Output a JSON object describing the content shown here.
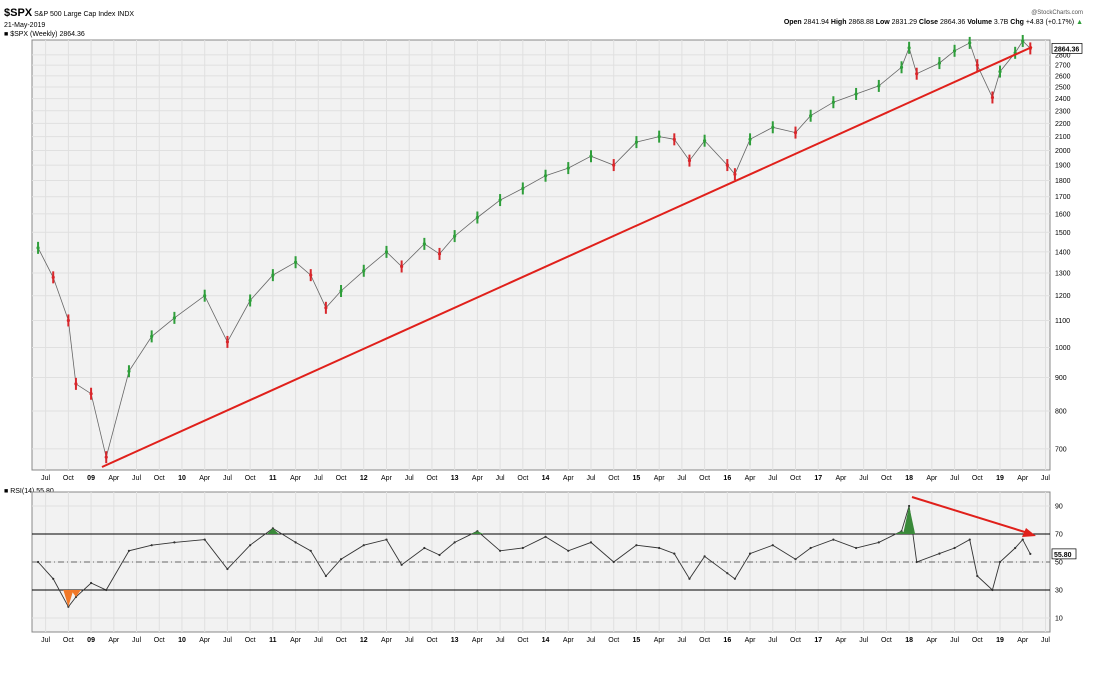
{
  "header": {
    "symbol": "$SPX",
    "name": "S&P 500 Large Cap Index",
    "exchange": "INDX",
    "date": "21-May-2019",
    "series_label": "$SPX (Weekly) 2864.36",
    "brand": "@StockCharts.com",
    "open_label": "Open",
    "open": "2841.94",
    "high_label": "High",
    "high": "2868.88",
    "low_label": "Low",
    "low": "2831.29",
    "close_label": "Close",
    "close": "2864.36",
    "volume_label": "Volume",
    "volume": "3.7B",
    "chg_label": "Chg",
    "chg": "+4.83 (+0.17%)"
  },
  "colors": {
    "up": "#2e9e3a",
    "down": "#d8262b",
    "trend": "#e0201b",
    "rsi_line": "#333333",
    "rsi_overbought": "#3a8a3a",
    "rsi_oversold": "#f07828",
    "panel_bg": "#f2f2f2",
    "grid": "#e0e0e0"
  },
  "chart_data": [
    {
      "type": "line",
      "name": "price",
      "title": "$SPX (Weekly) 2864.36",
      "scale": "log",
      "ylim": [
        650,
        2950
      ],
      "yticks": [
        700,
        800,
        900,
        1000,
        1100,
        1200,
        1300,
        1400,
        1500,
        1600,
        1700,
        1800,
        1900,
        2000,
        2100,
        2200,
        2300,
        2400,
        2500,
        2600,
        2700,
        2800
      ],
      "last_value": "2864.36",
      "x_axis_labels": [
        "Jul",
        "Oct",
        "09",
        "Apr",
        "Jul",
        "Oct",
        "10",
        "Apr",
        "Jul",
        "Oct",
        "11",
        "Apr",
        "Jul",
        "Oct",
        "12",
        "Apr",
        "Jul",
        "Oct",
        "13",
        "Apr",
        "Jul",
        "Oct",
        "14",
        "Apr",
        "Jul",
        "Oct",
        "15",
        "Apr",
        "Jul",
        "Oct",
        "16",
        "Apr",
        "Jul",
        "Oct",
        "17",
        "Apr",
        "Jul",
        "Oct",
        "18",
        "Apr",
        "Jul",
        "Oct",
        "19",
        "Apr",
        "Jul"
      ],
      "x": [
        "2008-06",
        "2008-08",
        "2008-10",
        "2008-11",
        "2009-01",
        "2009-03",
        "2009-06",
        "2009-09",
        "2009-12",
        "2010-04",
        "2010-07",
        "2010-10",
        "2011-01",
        "2011-04",
        "2011-06",
        "2011-08",
        "2011-10",
        "2012-01",
        "2012-04",
        "2012-06",
        "2012-09",
        "2012-11",
        "2013-01",
        "2013-04",
        "2013-07",
        "2013-10",
        "2014-01",
        "2014-04",
        "2014-07",
        "2014-10",
        "2015-01",
        "2015-04",
        "2015-06",
        "2015-08",
        "2015-10",
        "2016-01",
        "2016-02",
        "2016-04",
        "2016-07",
        "2016-10",
        "2016-12",
        "2017-03",
        "2017-06",
        "2017-09",
        "2017-12",
        "2018-01",
        "2018-02",
        "2018-05",
        "2018-07",
        "2018-09",
        "2018-10",
        "2018-12",
        "2019-01",
        "2019-03",
        "2019-04",
        "2019-05"
      ],
      "values": [
        1420,
        1280,
        1100,
        880,
        850,
        680,
        920,
        1040,
        1110,
        1200,
        1020,
        1180,
        1290,
        1350,
        1290,
        1150,
        1220,
        1310,
        1400,
        1330,
        1440,
        1390,
        1480,
        1580,
        1680,
        1750,
        1830,
        1880,
        1960,
        1900,
        2060,
        2100,
        2080,
        1930,
        2070,
        1900,
        1840,
        2080,
        2170,
        2130,
        2260,
        2370,
        2440,
        2510,
        2680,
        2870,
        2620,
        2720,
        2840,
        2920,
        2700,
        2410,
        2640,
        2820,
        2940,
        2864
      ]
    },
    {
      "type": "line",
      "name": "rsi",
      "title": "RSI(14) 55.80",
      "ylim": [
        0,
        100
      ],
      "yticks": [
        10,
        30,
        50,
        70,
        90
      ],
      "overbought": 70,
      "oversold": 30,
      "last_value": "55.80",
      "x": [
        "2008-06",
        "2008-08",
        "2008-10",
        "2008-11",
        "2009-01",
        "2009-03",
        "2009-06",
        "2009-09",
        "2009-12",
        "2010-04",
        "2010-07",
        "2010-10",
        "2011-01",
        "2011-04",
        "2011-06",
        "2011-08",
        "2011-10",
        "2012-01",
        "2012-04",
        "2012-06",
        "2012-09",
        "2012-11",
        "2013-01",
        "2013-04",
        "2013-07",
        "2013-10",
        "2014-01",
        "2014-04",
        "2014-07",
        "2014-10",
        "2015-01",
        "2015-04",
        "2015-06",
        "2015-08",
        "2015-10",
        "2016-01",
        "2016-02",
        "2016-04",
        "2016-07",
        "2016-10",
        "2016-12",
        "2017-03",
        "2017-06",
        "2017-09",
        "2017-12",
        "2018-01",
        "2018-02",
        "2018-05",
        "2018-07",
        "2018-09",
        "2018-10",
        "2018-12",
        "2019-01",
        "2019-03",
        "2019-04",
        "2019-05"
      ],
      "values": [
        50,
        38,
        18,
        25,
        35,
        30,
        58,
        62,
        64,
        66,
        45,
        62,
        74,
        64,
        58,
        40,
        52,
        62,
        66,
        48,
        60,
        55,
        64,
        72,
        58,
        60,
        68,
        58,
        64,
        50,
        62,
        60,
        56,
        38,
        54,
        42,
        38,
        56,
        62,
        52,
        60,
        66,
        60,
        64,
        72,
        90,
        50,
        56,
        60,
        66,
        40,
        30,
        50,
        60,
        66,
        55.8
      ]
    }
  ]
}
